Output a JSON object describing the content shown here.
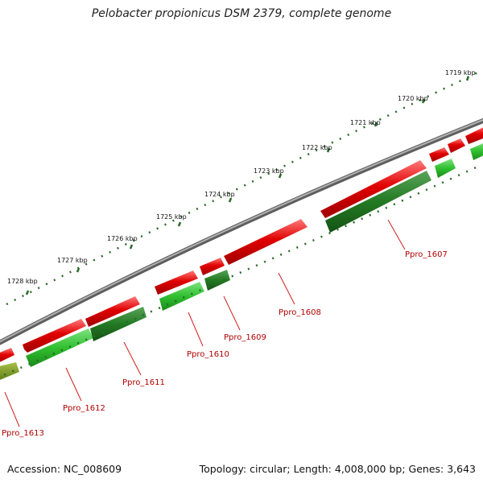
{
  "title": "Pelobacter propionicus DSM 2379, complete genome",
  "footer": {
    "accession": "Accession: NC_008609",
    "stats": "Topology: circular; Length: 4,008,000 bp; Genes: 3,643"
  },
  "colors": {
    "forward": "#e00000",
    "reverse": "#1fae1f",
    "reverse_dark": "#237a23",
    "olive": "#7a9a1a",
    "backbone": "#808080",
    "label": "#b00000"
  },
  "ruler": [
    "1719 kbp",
    "1720 kbp",
    "1721 kbp",
    "1722 kbp",
    "1723 kbp",
    "1724 kbp",
    "1725 kbp",
    "1726 kbp",
    "1727 kbp",
    "1728 kbp"
  ],
  "genes": [
    {
      "label": "Ppro_1607"
    },
    {
      "label": "Ppro_1608"
    },
    {
      "label": "Ppro_1609"
    },
    {
      "label": "Ppro_1610"
    },
    {
      "label": "Ppro_1611"
    },
    {
      "label": "Ppro_1612"
    },
    {
      "label": "Ppro_1613"
    }
  ]
}
